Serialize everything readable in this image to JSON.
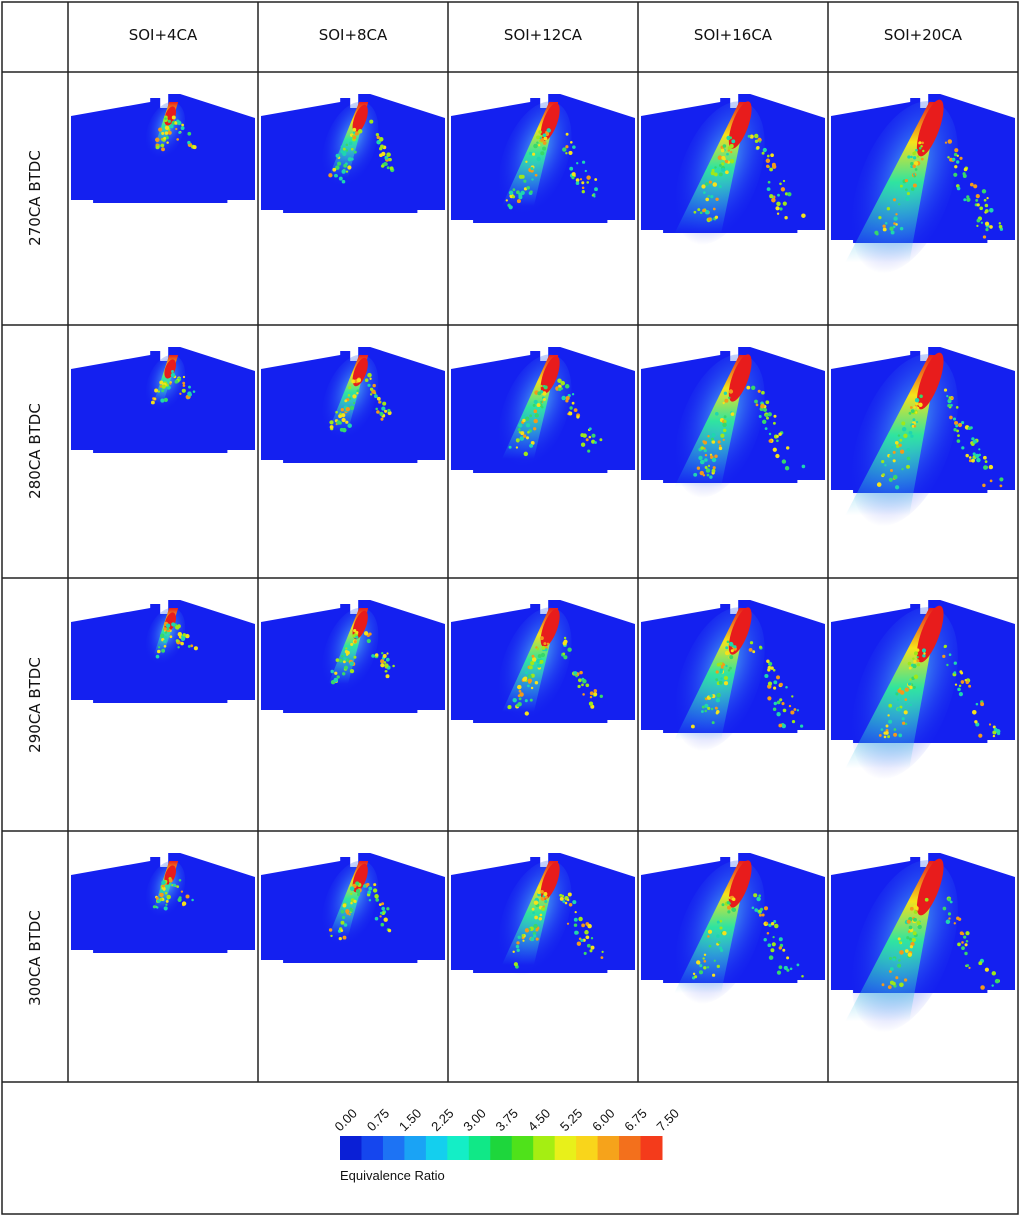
{
  "columns": [
    "SOI+4CA",
    "SOI+8CA",
    "SOI+12CA",
    "SOI+16CA",
    "SOI+20CA"
  ],
  "rows": [
    "270CA BTDC",
    "280CA BTDC",
    "290CA BTDC",
    "300CA BTDC"
  ],
  "colorbar": {
    "title": "Equivalence Ratio",
    "ticks": [
      "0.00",
      "0.75",
      "1.50",
      "2.25",
      "3.00",
      "3.75",
      "4.50",
      "5.25",
      "6.00",
      "6.75",
      "7.50"
    ],
    "min": 0,
    "max": 7.5,
    "colors": [
      "#0a1fd6",
      "#1546ee",
      "#1d73f4",
      "#1aa3f5",
      "#14cfee",
      "#14eec6",
      "#10e887",
      "#1ed63c",
      "#4fe21a",
      "#a5ee12",
      "#e8f01a",
      "#f9d51b",
      "#f6a31b",
      "#f3701c",
      "#f43b1b"
    ]
  },
  "field_colors": {
    "background": "#1420f0",
    "plume_outer": "#33b8f5",
    "plume_mid": "#2fe4a0",
    "plume_core": "#f6e21a",
    "peak": "#e81c1c",
    "droplet": "#37d86a"
  }
}
